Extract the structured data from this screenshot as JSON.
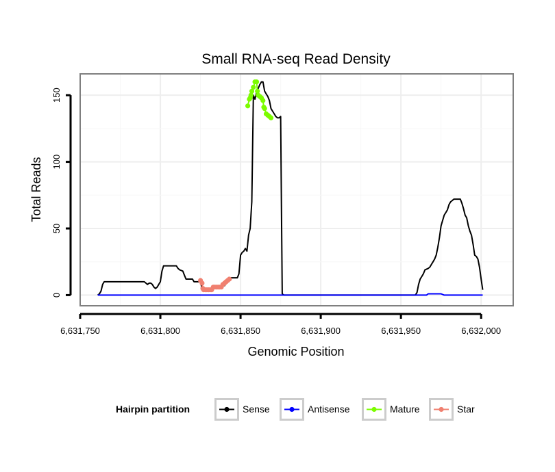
{
  "chart_data": {
    "type": "line",
    "title": "Small RNA-seq Read Density",
    "xlabel": "Genomic Position",
    "ylabel": "Total Reads",
    "xlim": [
      6631750,
      6632020
    ],
    "ylim": [
      -8,
      166
    ],
    "x_ticks": [
      6631750,
      6631800,
      6631850,
      6631900,
      6631950,
      6632000
    ],
    "x_tick_labels": [
      "6,631,750",
      "6,631,800",
      "6,631,850",
      "6,631,900",
      "6,631,950",
      "6,632,000"
    ],
    "y_ticks": [
      0,
      50,
      100,
      150
    ],
    "y_tick_labels": [
      "0",
      "50",
      "100",
      "150"
    ],
    "grid": true,
    "legend": {
      "title": "Hairpin partition",
      "position": "bottom",
      "entries": [
        "Sense",
        "Antisense",
        "Mature",
        "Star"
      ]
    },
    "series": [
      {
        "name": "Sense",
        "color": "#000000",
        "style": "line",
        "points": [
          [
            6631761,
            0
          ],
          [
            6631762,
            1
          ],
          [
            6631763,
            3
          ],
          [
            6631764,
            8
          ],
          [
            6631765,
            10
          ],
          [
            6631766,
            10
          ],
          [
            6631790,
            10
          ],
          [
            6631791,
            9
          ],
          [
            6631792,
            8
          ],
          [
            6631793,
            9
          ],
          [
            6631794,
            9
          ],
          [
            6631795,
            8
          ],
          [
            6631796,
            6
          ],
          [
            6631797,
            5
          ],
          [
            6631798,
            6
          ],
          [
            6631799,
            8
          ],
          [
            6631800,
            10
          ],
          [
            6631801,
            18
          ],
          [
            6631802,
            22
          ],
          [
            6631810,
            22
          ],
          [
            6631811,
            20
          ],
          [
            6631812,
            19
          ],
          [
            6631814,
            18
          ],
          [
            6631815,
            15
          ],
          [
            6631816,
            12
          ],
          [
            6631820,
            12
          ],
          [
            6631821,
            10
          ],
          [
            6631825,
            10
          ],
          [
            6631826,
            5
          ],
          [
            6631836,
            5
          ],
          [
            6631837,
            7
          ],
          [
            6631840,
            7
          ],
          [
            6631841,
            9
          ],
          [
            6631843,
            11
          ],
          [
            6631844,
            13
          ],
          [
            6631848,
            13
          ],
          [
            6631849,
            16
          ],
          [
            6631850,
            30
          ],
          [
            6631851,
            32
          ],
          [
            6631852,
            33
          ],
          [
            6631853,
            35
          ],
          [
            6631854,
            33
          ],
          [
            6631855,
            45
          ],
          [
            6631856,
            50
          ],
          [
            6631857,
            70
          ],
          [
            6631858,
            150
          ],
          [
            6631859,
            147
          ],
          [
            6631860,
            152
          ],
          [
            6631861,
            155
          ],
          [
            6631862,
            158
          ],
          [
            6631863,
            160
          ],
          [
            6631864,
            160
          ],
          [
            6631865,
            153
          ],
          [
            6631866,
            151
          ],
          [
            6631867,
            149
          ],
          [
            6631868,
            146
          ],
          [
            6631869,
            140
          ],
          [
            6631870,
            138
          ],
          [
            6631871,
            136
          ],
          [
            6631872,
            134
          ],
          [
            6631873,
            133
          ],
          [
            6631874,
            133
          ],
          [
            6631875,
            134
          ],
          [
            6631876,
            1
          ],
          [
            6631877,
            0
          ],
          [
            6631878,
            0
          ],
          [
            6631959,
            0
          ],
          [
            6631960,
            2
          ],
          [
            6631961,
            8
          ],
          [
            6631962,
            12
          ],
          [
            6631963,
            14
          ],
          [
            6631964,
            16
          ],
          [
            6631965,
            19
          ],
          [
            6631967,
            20
          ],
          [
            6631968,
            21
          ],
          [
            6631969,
            23
          ],
          [
            6631970,
            25
          ],
          [
            6631971,
            27
          ],
          [
            6631972,
            30
          ],
          [
            6631973,
            36
          ],
          [
            6631974,
            43
          ],
          [
            6631975,
            52
          ],
          [
            6631976,
            56
          ],
          [
            6631977,
            60
          ],
          [
            6631978,
            62
          ],
          [
            6631979,
            64
          ],
          [
            6631980,
            68
          ],
          [
            6631981,
            70
          ],
          [
            6631982,
            71
          ],
          [
            6631983,
            72
          ],
          [
            6631987,
            72
          ],
          [
            6631988,
            69
          ],
          [
            6631989,
            65
          ],
          [
            6631990,
            60
          ],
          [
            6631991,
            58
          ],
          [
            6631992,
            52
          ],
          [
            6631993,
            48
          ],
          [
            6631994,
            45
          ],
          [
            6631995,
            38
          ],
          [
            6631996,
            30
          ],
          [
            6631997,
            29
          ],
          [
            6631998,
            27
          ],
          [
            6631999,
            21
          ],
          [
            6632000,
            12
          ],
          [
            6632001,
            4
          ]
        ]
      },
      {
        "name": "Antisense",
        "color": "#0000ff",
        "style": "line",
        "points": [
          [
            6631761,
            0
          ],
          [
            6631966,
            0
          ],
          [
            6631967,
            1
          ],
          [
            6631975,
            1
          ],
          [
            6631977,
            0
          ],
          [
            6632001,
            0
          ]
        ]
      },
      {
        "name": "Mature",
        "color": "#7cfc00",
        "style": "line+points",
        "points": [
          [
            6631854.5,
            142
          ],
          [
            6631855.5,
            147
          ],
          [
            6631856,
            148
          ],
          [
            6631856.5,
            150
          ],
          [
            6631857,
            153
          ],
          [
            6631858,
            156
          ],
          [
            6631859,
            160
          ],
          [
            6631860,
            160
          ],
          [
            6631860.5,
            153
          ],
          [
            6631861,
            150
          ],
          [
            6631862,
            149
          ],
          [
            6631863,
            148
          ],
          [
            6631864,
            146
          ],
          [
            6631864.5,
            141
          ],
          [
            6631865,
            140
          ],
          [
            6631866,
            136
          ],
          [
            6631867,
            135
          ],
          [
            6631868,
            134
          ],
          [
            6631869,
            133
          ]
        ]
      },
      {
        "name": "Star",
        "color": "#f08070",
        "style": "line+points",
        "points": [
          [
            6631825,
            11
          ],
          [
            6631826,
            9
          ],
          [
            6631826.5,
            5
          ],
          [
            6631827,
            4
          ],
          [
            6631828,
            4
          ],
          [
            6631829,
            4
          ],
          [
            6631830,
            4
          ],
          [
            6631831,
            4
          ],
          [
            6631832,
            4
          ],
          [
            6631833,
            6
          ],
          [
            6631834,
            6
          ],
          [
            6631835,
            6
          ],
          [
            6631836,
            6
          ],
          [
            6631837,
            6
          ],
          [
            6631838,
            6
          ],
          [
            6631839,
            8
          ],
          [
            6631840,
            9
          ],
          [
            6631841,
            10
          ],
          [
            6631842,
            11
          ],
          [
            6631843,
            12
          ]
        ]
      }
    ]
  }
}
